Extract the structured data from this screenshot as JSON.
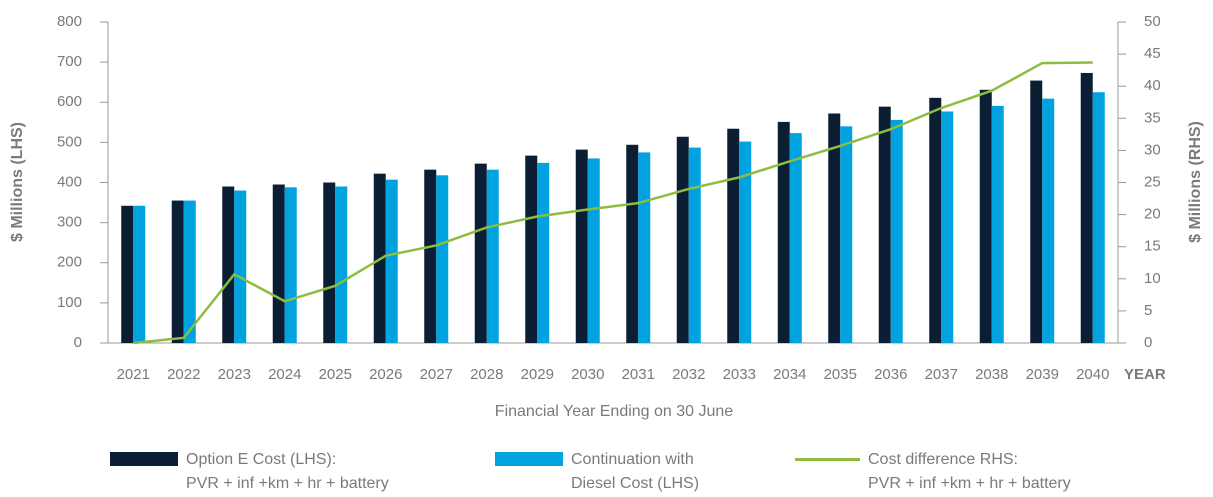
{
  "chart_data": {
    "type": "bar",
    "categories": [
      "2021",
      "2022",
      "2023",
      "2024",
      "2025",
      "2026",
      "2027",
      "2028",
      "2029",
      "2030",
      "2031",
      "2032",
      "2033",
      "2034",
      "2035",
      "2036",
      "2037",
      "2038",
      "2039",
      "2040"
    ],
    "x_unit_label": "YEAR",
    "xlabel": "Financial Year Ending on 30 June",
    "ylabel": "$ Millions (LHS)",
    "y2label": "$ Millions (RHS)",
    "ylim": [
      0,
      800
    ],
    "yticks": [
      0,
      100,
      200,
      300,
      400,
      500,
      600,
      700,
      800
    ],
    "y2lim": [
      0,
      50
    ],
    "y2ticks": [
      0,
      5,
      10,
      15,
      20,
      25,
      30,
      35,
      40,
      45,
      50
    ],
    "grid": false,
    "series": [
      {
        "name": "Option E Cost (LHS):\nPVR + inf +km + hr + battery",
        "type": "bar",
        "color": "#0b1e33",
        "values": [
          342,
          355,
          390,
          395,
          400,
          422,
          432,
          447,
          467,
          482,
          494,
          514,
          534,
          551,
          572,
          589,
          611,
          631,
          654,
          673
        ]
      },
      {
        "name": "Continuation with\nDiesel Cost (LHS)",
        "type": "bar",
        "color": "#00a3e0",
        "values": [
          342,
          355,
          380,
          388,
          390,
          407,
          418,
          432,
          449,
          460,
          475,
          487,
          502,
          523,
          540,
          556,
          577,
          591,
          609,
          625
        ]
      },
      {
        "name": "Cost difference RHS:\nPVR + inf +km + hr + battery",
        "type": "line",
        "axis": "y2",
        "color": "#8cbd3f",
        "values": [
          0,
          0.8,
          10.7,
          6.5,
          8.9,
          13.6,
          15.2,
          18,
          19.7,
          20.8,
          21.8,
          24,
          25.8,
          28.3,
          30.7,
          33.3,
          36.6,
          39.3,
          43.6,
          43.7
        ]
      }
    ]
  }
}
